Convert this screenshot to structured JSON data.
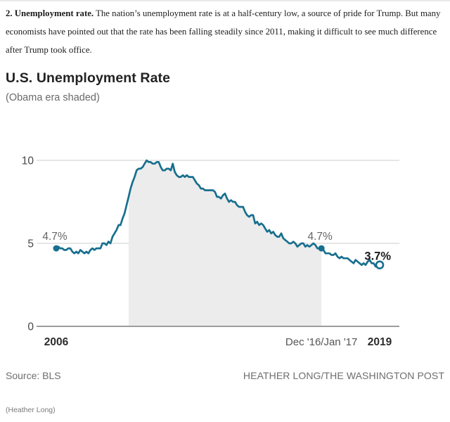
{
  "intro": {
    "lead": "2. Unemployment rate.",
    "body": " The nation’s unemployment rate is at a half-century low, a source of pride for Trump. But many economists have pointed out that the rate has been falling steadily since 2011, making it difficult to see much difference after Trump took office."
  },
  "chart_data": {
    "type": "line",
    "title": "U.S. Unemployment Rate",
    "subtitle": "(Obama era shaded)",
    "frequency": "monthly",
    "ylim": [
      0,
      10
    ],
    "grid": true,
    "values": [
      4.7,
      4.8,
      4.7,
      4.7,
      4.6,
      4.6,
      4.7,
      4.7,
      4.5,
      4.4,
      4.5,
      4.4,
      4.6,
      4.5,
      4.4,
      4.5,
      4.4,
      4.6,
      4.7,
      4.6,
      4.7,
      4.7,
      4.7,
      5.0,
      5.0,
      4.9,
      5.1,
      5.0,
      5.4,
      5.6,
      5.8,
      6.1,
      6.1,
      6.5,
      6.8,
      7.3,
      7.8,
      8.3,
      8.7,
      9.0,
      9.4,
      9.5,
      9.5,
      9.6,
      9.8,
      10.0,
      9.9,
      9.9,
      9.8,
      9.8,
      9.9,
      9.9,
      9.6,
      9.4,
      9.4,
      9.5,
      9.5,
      9.4,
      9.8,
      9.3,
      9.1,
      9.0,
      9.0,
      9.1,
      9.0,
      9.1,
      9.0,
      9.0,
      9.0,
      8.8,
      8.6,
      8.5,
      8.3,
      8.3,
      8.2,
      8.2,
      8.2,
      8.2,
      8.2,
      8.1,
      7.8,
      7.8,
      7.7,
      7.9,
      8.0,
      7.7,
      7.5,
      7.6,
      7.5,
      7.5,
      7.3,
      7.2,
      7.2,
      7.2,
      6.9,
      6.7,
      6.6,
      6.7,
      6.7,
      6.2,
      6.3,
      6.1,
      6.2,
      6.1,
      5.9,
      5.7,
      5.8,
      5.6,
      5.7,
      5.5,
      5.4,
      5.4,
      5.6,
      5.3,
      5.2,
      5.1,
      5.0,
      5.0,
      5.1,
      5.0,
      4.8,
      4.9,
      5.0,
      5.0,
      4.8,
      4.9,
      4.8,
      4.9,
      5.0,
      4.9,
      4.7,
      4.7,
      4.7,
      4.6,
      4.4,
      4.4,
      4.4,
      4.3,
      4.3,
      4.4,
      4.2,
      4.1,
      4.2,
      4.1,
      4.1,
      4.1,
      4.0,
      3.9,
      3.8,
      4.0,
      3.9,
      3.8,
      3.7,
      3.8,
      3.7,
      3.9,
      4.0,
      3.8,
      3.8,
      3.6,
      3.6,
      3.7
    ],
    "yticks": [
      {
        "value": 0,
        "label": "0"
      },
      {
        "value": 5,
        "label": "5"
      },
      {
        "value": 10,
        "label": "10"
      }
    ],
    "xticks": [
      {
        "label": "2006",
        "index": 0,
        "style": "dark"
      },
      {
        "label": "Dec '16/Jan '17",
        "index": 132,
        "style": "gray"
      },
      {
        "label": "2019",
        "index": 161,
        "style": "dark"
      }
    ],
    "markers": [
      {
        "index": 0,
        "value": 4.7,
        "type": "filled",
        "label": "4.7%",
        "label_style": "gray"
      },
      {
        "index": 132,
        "value": 4.7,
        "type": "filled",
        "label": "4.7%",
        "label_style": "gray"
      },
      {
        "index": 161,
        "value": 3.7,
        "type": "open",
        "label": "3.7%",
        "label_style": "dark"
      }
    ],
    "shaded_region": {
      "label": "Obama era",
      "start_index": 36,
      "end_index": 132
    },
    "colors": {
      "line": "#186f8e",
      "shade": "#ececec",
      "grid": "#d8d8d8",
      "axis": "#9c9c9c",
      "ytick_text": "#474747",
      "xtick_dark_text": "#2b2b2b",
      "xtick_gray_text": "#555555",
      "label_gray_text": "#666666",
      "label_dark_text": "#1a1a1a"
    }
  },
  "footer": {
    "source": "Source: BLS",
    "credit": "HEATHER LONG/THE WASHINGTON POST",
    "caption": "(Heather Long)"
  }
}
